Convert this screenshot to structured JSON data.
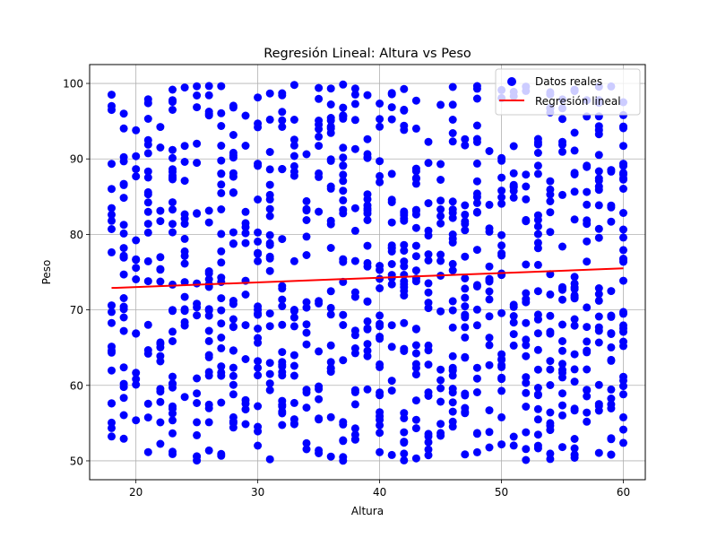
{
  "chart_data": {
    "type": "scatter",
    "title": "Regresión Lineal: Altura vs Peso",
    "xlabel": "Altura",
    "ylabel": "Peso",
    "xlim": [
      16.2,
      61.8
    ],
    "ylim": [
      47.5,
      102.5
    ],
    "x_ticks": [
      20,
      30,
      40,
      50,
      60
    ],
    "y_ticks": [
      50,
      60,
      70,
      80,
      90,
      100
    ],
    "grid": true,
    "legend_position": "top-right",
    "colors": {
      "scatter": "#0000ff",
      "line": "#ff0000",
      "grid": "#b0b0b0"
    },
    "series": [
      {
        "name": "Datos reales",
        "kind": "scatter",
        "point_count": 1000,
        "x_range": [
          18,
          60
        ],
        "y_range": [
          50,
          100
        ],
        "distribution": "integer altura values 18-60, peso roughly uniform 50-100"
      },
      {
        "name": "Regresión lineal",
        "kind": "line",
        "x": [
          18,
          60
        ],
        "y": [
          72.9,
          75.5
        ]
      }
    ]
  }
}
